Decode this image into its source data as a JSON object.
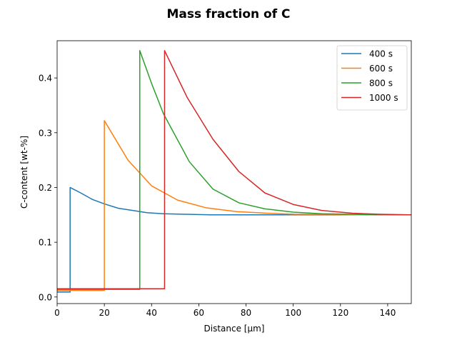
{
  "chart_data": {
    "type": "line",
    "title": "Mass fraction of C",
    "xlabel": "Distance [µm]",
    "ylabel": "C-content [wt-%]",
    "xlim": [
      0,
      150
    ],
    "ylim": [
      -0.012,
      0.468
    ],
    "xticks": [
      0,
      20,
      40,
      60,
      80,
      100,
      120,
      140
    ],
    "yticks": [
      0.0,
      0.1,
      0.2,
      0.3,
      0.4
    ],
    "xtick_labels": [
      "0",
      "20",
      "40",
      "60",
      "80",
      "100",
      120,
      140
    ],
    "ytick_labels": [
      "0.0",
      "0.1",
      "0.2",
      "0.3",
      "0.4"
    ],
    "grid": false,
    "legend_position": "upper right",
    "series": [
      {
        "name": "400 s",
        "color": "#1f77b4",
        "x": [
          0,
          5.5,
          5.5,
          10,
          15,
          20,
          26,
          32,
          38,
          45,
          55,
          65,
          80,
          100,
          120,
          150
        ],
        "y": [
          0.009,
          0.009,
          0.2,
          0.19,
          0.178,
          0.17,
          0.162,
          0.158,
          0.154,
          0.152,
          0.151,
          0.15,
          0.15,
          0.15,
          0.15,
          0.15
        ]
      },
      {
        "name": "600 s",
        "color": "#ff7f0e",
        "x": [
          0,
          20,
          20,
          30,
          40,
          51,
          63,
          76,
          89,
          101,
          114,
          126,
          139,
          150
        ],
        "y": [
          0.012,
          0.012,
          0.322,
          0.25,
          0.203,
          0.177,
          0.163,
          0.156,
          0.153,
          0.151,
          0.151,
          0.15,
          0.15,
          0.15
        ]
      },
      {
        "name": "800 s",
        "color": "#2ca02c",
        "x": [
          0,
          35,
          35,
          40,
          45,
          56,
          66,
          77,
          88,
          100,
          112,
          125,
          137,
          150
        ],
        "y": [
          0.014,
          0.014,
          0.45,
          0.39,
          0.335,
          0.247,
          0.197,
          0.172,
          0.161,
          0.155,
          0.152,
          0.151,
          0.15,
          0.15
        ]
      },
      {
        "name": "1000 s",
        "color": "#d62728",
        "x": [
          0,
          45.5,
          45.5,
          55,
          66,
          77,
          88,
          100,
          112,
          125,
          137,
          150
        ],
        "y": [
          0.015,
          0.015,
          0.45,
          0.365,
          0.288,
          0.229,
          0.19,
          0.169,
          0.158,
          0.153,
          0.151,
          0.15
        ]
      }
    ]
  }
}
